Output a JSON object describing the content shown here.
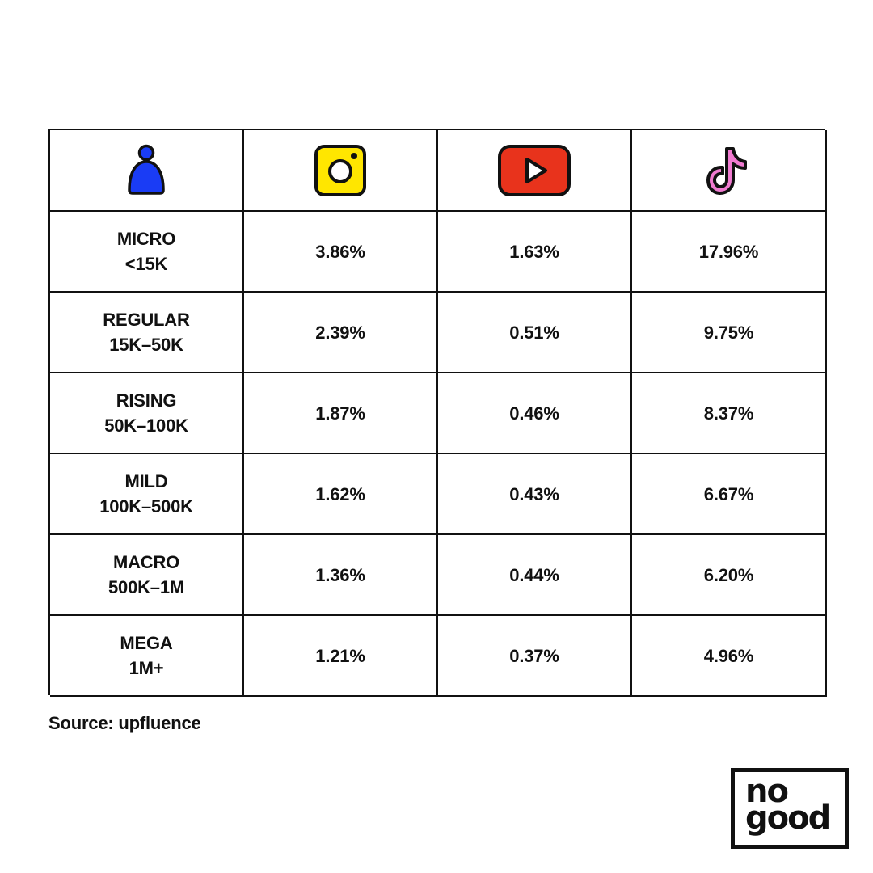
{
  "header": {
    "icons": [
      "person-icon",
      "instagram-icon",
      "youtube-icon",
      "tiktok-icon"
    ]
  },
  "chart_data": {
    "type": "table",
    "title": "",
    "columns": [
      "",
      "Instagram",
      "YouTube",
      "TikTok"
    ],
    "rows": [
      {
        "tier": "MICRO",
        "range": "<15K",
        "values": [
          "3.86%",
          "1.63%",
          "17.96%"
        ]
      },
      {
        "tier": "REGULAR",
        "range": "15K–50K",
        "values": [
          "2.39%",
          "0.51%",
          "9.75%"
        ]
      },
      {
        "tier": "RISING",
        "range": "50K–100K",
        "values": [
          "1.87%",
          "0.46%",
          "8.37%"
        ]
      },
      {
        "tier": "MILD",
        "range": "100K–500K",
        "values": [
          "1.62%",
          "0.43%",
          "6.67%"
        ]
      },
      {
        "tier": "MACRO",
        "range": "500K–1M",
        "values": [
          "1.36%",
          "0.44%",
          "6.20%"
        ]
      },
      {
        "tier": "MEGA",
        "range": "1M+",
        "values": [
          "1.21%",
          "0.37%",
          "4.96%"
        ]
      }
    ]
  },
  "footer": {
    "source": "Source: upfluence"
  },
  "logo": {
    "line1": "no",
    "line2": "good"
  },
  "colors": {
    "person": "#1a3cf5",
    "instagram": "#ffe600",
    "youtube": "#e8331c",
    "tiktok": "#f07ad0",
    "ink": "#111111"
  }
}
